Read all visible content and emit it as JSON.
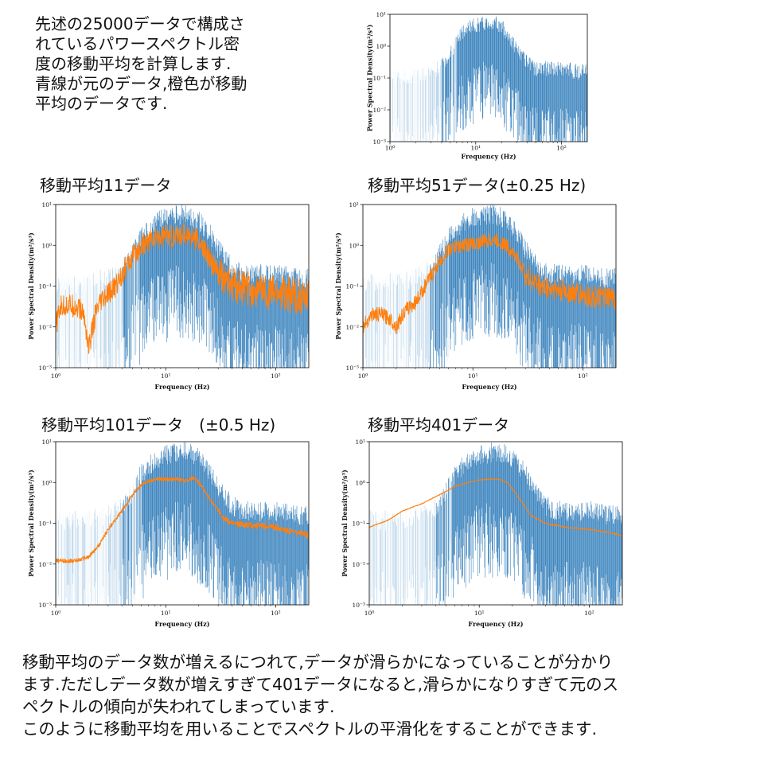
{
  "intro": "先述の25000データで構成さ\nれているパワースペクトル密\n度の移動平均を計算します.\n青線が元のデータ,橙色が移動\n平均のデータです.",
  "panel_titles": [
    "移動平均11データ",
    "移動平均51データ(±0.25 Hz)",
    "移動平均101データ　(±0.5 Hz)",
    "移動平均401データ"
  ],
  "summary": "移動平均のデータ数が増えるにつれて,データが滑らかになっていることが分かり\nます.ただしデータ数が増えすぎて401データになると,滑らかになりすぎて元のス\nペクトルの傾向が失われてしまっています.\n このように移動平均を用いることでスペクトルの平滑化をすることができます.",
  "colors": {
    "raw": "#3f86bf",
    "smoothed": "#ff7f0e"
  },
  "chart_data": [
    {
      "type": "line",
      "xlabel": "Frequency (Hz)",
      "ylabel": "Power Spectral Density(m²/s³)",
      "xscale": "log",
      "yscale": "log",
      "xlim": [
        1,
        200
      ],
      "ylim": [
        0.001,
        10
      ],
      "xticks": [
        "10⁰",
        "10¹",
        "10²"
      ],
      "yticks": [
        "10⁻³",
        "10⁻²",
        "10⁻¹",
        "10⁰",
        "10¹"
      ],
      "series": [
        {
          "role": "raw",
          "x": [
            1.2,
            2,
            3,
            4,
            5,
            6,
            8,
            10,
            12,
            15,
            18,
            20,
            25,
            30,
            40,
            50,
            80,
            100,
            150,
            200
          ],
          "y": [
            0.03,
            0.03,
            0.04,
            0.06,
            0.15,
            0.4,
            0.9,
            1.2,
            1.3,
            1.5,
            1.2,
            1.0,
            0.5,
            0.2,
            0.07,
            0.05,
            0.05,
            0.05,
            0.04,
            0.04
          ]
        }
      ]
    },
    {
      "type": "line",
      "title": "移動平均11データ",
      "xlabel": "Frequency (Hz)",
      "ylabel": "Power Spectral Density(m²/s³)",
      "xscale": "log",
      "yscale": "log",
      "xlim": [
        1,
        200
      ],
      "ylim": [
        0.001,
        10
      ],
      "xticks": [
        "10⁰",
        "10¹",
        "10²"
      ],
      "yticks": [
        "10⁻³",
        "10⁻²",
        "10⁻¹",
        "10⁰",
        "10¹"
      ],
      "series": [
        {
          "role": "raw",
          "x": [
            1.2,
            2,
            3,
            4,
            5,
            6,
            8,
            10,
            12,
            15,
            18,
            20,
            25,
            30,
            40,
            50,
            80,
            100,
            150,
            200
          ],
          "y": [
            0.03,
            0.03,
            0.04,
            0.06,
            0.15,
            0.4,
            0.9,
            1.2,
            1.3,
            1.5,
            1.2,
            1.0,
            0.5,
            0.2,
            0.07,
            0.05,
            0.05,
            0.05,
            0.04,
            0.04
          ]
        },
        {
          "role": "smoothed",
          "x": [
            1,
            1.1,
            1.3,
            1.6,
            1.8,
            2,
            2.3,
            2.6,
            3,
            3.5,
            4,
            5,
            6,
            8,
            10,
            12,
            15,
            18,
            20,
            25,
            30,
            40,
            60,
            100,
            150,
            200
          ],
          "y": [
            0.01,
            0.03,
            0.035,
            0.03,
            0.02,
            0.003,
            0.02,
            0.04,
            0.06,
            0.1,
            0.2,
            0.5,
            1.0,
            1.5,
            1.8,
            1.5,
            2.0,
            1.6,
            1.2,
            0.5,
            0.2,
            0.1,
            0.08,
            0.07,
            0.06,
            0.05
          ]
        }
      ]
    },
    {
      "type": "line",
      "title": "移動平均51データ(±0.25 Hz)",
      "xlabel": "Frequency (Hz)",
      "ylabel": "Power Spectral Density(m²/s³)",
      "xscale": "log",
      "yscale": "log",
      "xlim": [
        1,
        200
      ],
      "ylim": [
        0.001,
        10
      ],
      "xticks": [
        "10⁰",
        "10¹",
        "10²"
      ],
      "yticks": [
        "10⁻³",
        "10⁻²",
        "10⁻¹",
        "10⁰",
        "10¹"
      ],
      "series": [
        {
          "role": "raw",
          "x": [
            1.2,
            2,
            3,
            4,
            5,
            6,
            8,
            10,
            12,
            15,
            18,
            20,
            25,
            30,
            40,
            50,
            80,
            100,
            150,
            200
          ],
          "y": [
            0.03,
            0.03,
            0.04,
            0.06,
            0.15,
            0.4,
            0.9,
            1.2,
            1.3,
            1.5,
            1.2,
            1.0,
            0.5,
            0.2,
            0.07,
            0.05,
            0.05,
            0.05,
            0.04,
            0.04
          ]
        },
        {
          "role": "smoothed",
          "x": [
            1,
            1.2,
            1.5,
            1.8,
            2,
            2.3,
            2.6,
            3,
            3.5,
            4,
            5,
            6,
            8,
            10,
            12,
            15,
            18,
            20,
            25,
            30,
            40,
            60,
            100,
            150,
            200
          ],
          "y": [
            0.01,
            0.02,
            0.02,
            0.015,
            0.01,
            0.02,
            0.03,
            0.04,
            0.08,
            0.15,
            0.4,
            0.8,
            1.0,
            1.1,
            1.2,
            1.4,
            1.2,
            1.0,
            0.5,
            0.2,
            0.1,
            0.08,
            0.06,
            0.05,
            0.05
          ]
        }
      ]
    },
    {
      "type": "line",
      "title": "移動平均101データ　(±0.5 Hz)",
      "xlabel": "Frequency (Hz)",
      "ylabel": "Power Spectral Density(m²/s³)",
      "xscale": "log",
      "yscale": "log",
      "xlim": [
        1,
        200
      ],
      "ylim": [
        0.001,
        10
      ],
      "xticks": [
        "10⁰",
        "10¹",
        "10²"
      ],
      "yticks": [
        "10⁻³",
        "10⁻²",
        "10⁻¹",
        "10⁰",
        "10¹"
      ],
      "series": [
        {
          "role": "raw",
          "x": [
            1.2,
            2,
            3,
            4,
            5,
            6,
            8,
            10,
            12,
            15,
            18,
            20,
            25,
            30,
            40,
            50,
            80,
            100,
            150,
            200
          ],
          "y": [
            0.03,
            0.03,
            0.04,
            0.06,
            0.15,
            0.4,
            0.9,
            1.2,
            1.3,
            1.5,
            1.2,
            1.0,
            0.5,
            0.2,
            0.07,
            0.05,
            0.05,
            0.05,
            0.04,
            0.04
          ]
        },
        {
          "role": "smoothed",
          "x": [
            1,
            1.5,
            2,
            2.5,
            3,
            4,
            5,
            6,
            8,
            10,
            12,
            15,
            18,
            20,
            25,
            30,
            35,
            40,
            60,
            100,
            150,
            200
          ],
          "y": [
            0.012,
            0.012,
            0.015,
            0.03,
            0.07,
            0.2,
            0.5,
            0.9,
            1.2,
            1.2,
            1.2,
            1.1,
            1.3,
            1.0,
            0.4,
            0.2,
            0.12,
            0.1,
            0.09,
            0.08,
            0.06,
            0.05
          ]
        }
      ]
    },
    {
      "type": "line",
      "title": "移動平均401データ",
      "xlabel": "Frequency (Hz)",
      "ylabel": "Power Spectral Density(m²/s³)",
      "xscale": "log",
      "yscale": "log",
      "xlim": [
        1,
        200
      ],
      "ylim": [
        0.001,
        10
      ],
      "xticks": [
        "10⁰",
        "10¹",
        "10²"
      ],
      "yticks": [
        "10⁻³",
        "10⁻²",
        "10⁻¹",
        "10⁰",
        "10¹"
      ],
      "series": [
        {
          "role": "raw",
          "x": [
            1.2,
            2,
            3,
            4,
            5,
            6,
            8,
            10,
            12,
            15,
            18,
            20,
            25,
            30,
            40,
            50,
            80,
            100,
            150,
            200
          ],
          "y": [
            0.03,
            0.03,
            0.04,
            0.06,
            0.15,
            0.4,
            0.9,
            1.2,
            1.3,
            1.5,
            1.2,
            1.0,
            0.5,
            0.2,
            0.07,
            0.05,
            0.05,
            0.05,
            0.04,
            0.04
          ]
        },
        {
          "role": "smoothed",
          "x": [
            1,
            1.5,
            2,
            3,
            4,
            5,
            6,
            8,
            10,
            12,
            15,
            18,
            20,
            25,
            30,
            40,
            60,
            100,
            150,
            200
          ],
          "y": [
            0.08,
            0.12,
            0.2,
            0.3,
            0.45,
            0.6,
            0.8,
            1.0,
            1.15,
            1.2,
            1.2,
            1.0,
            0.7,
            0.3,
            0.15,
            0.1,
            0.08,
            0.07,
            0.06,
            0.05
          ]
        }
      ]
    }
  ]
}
